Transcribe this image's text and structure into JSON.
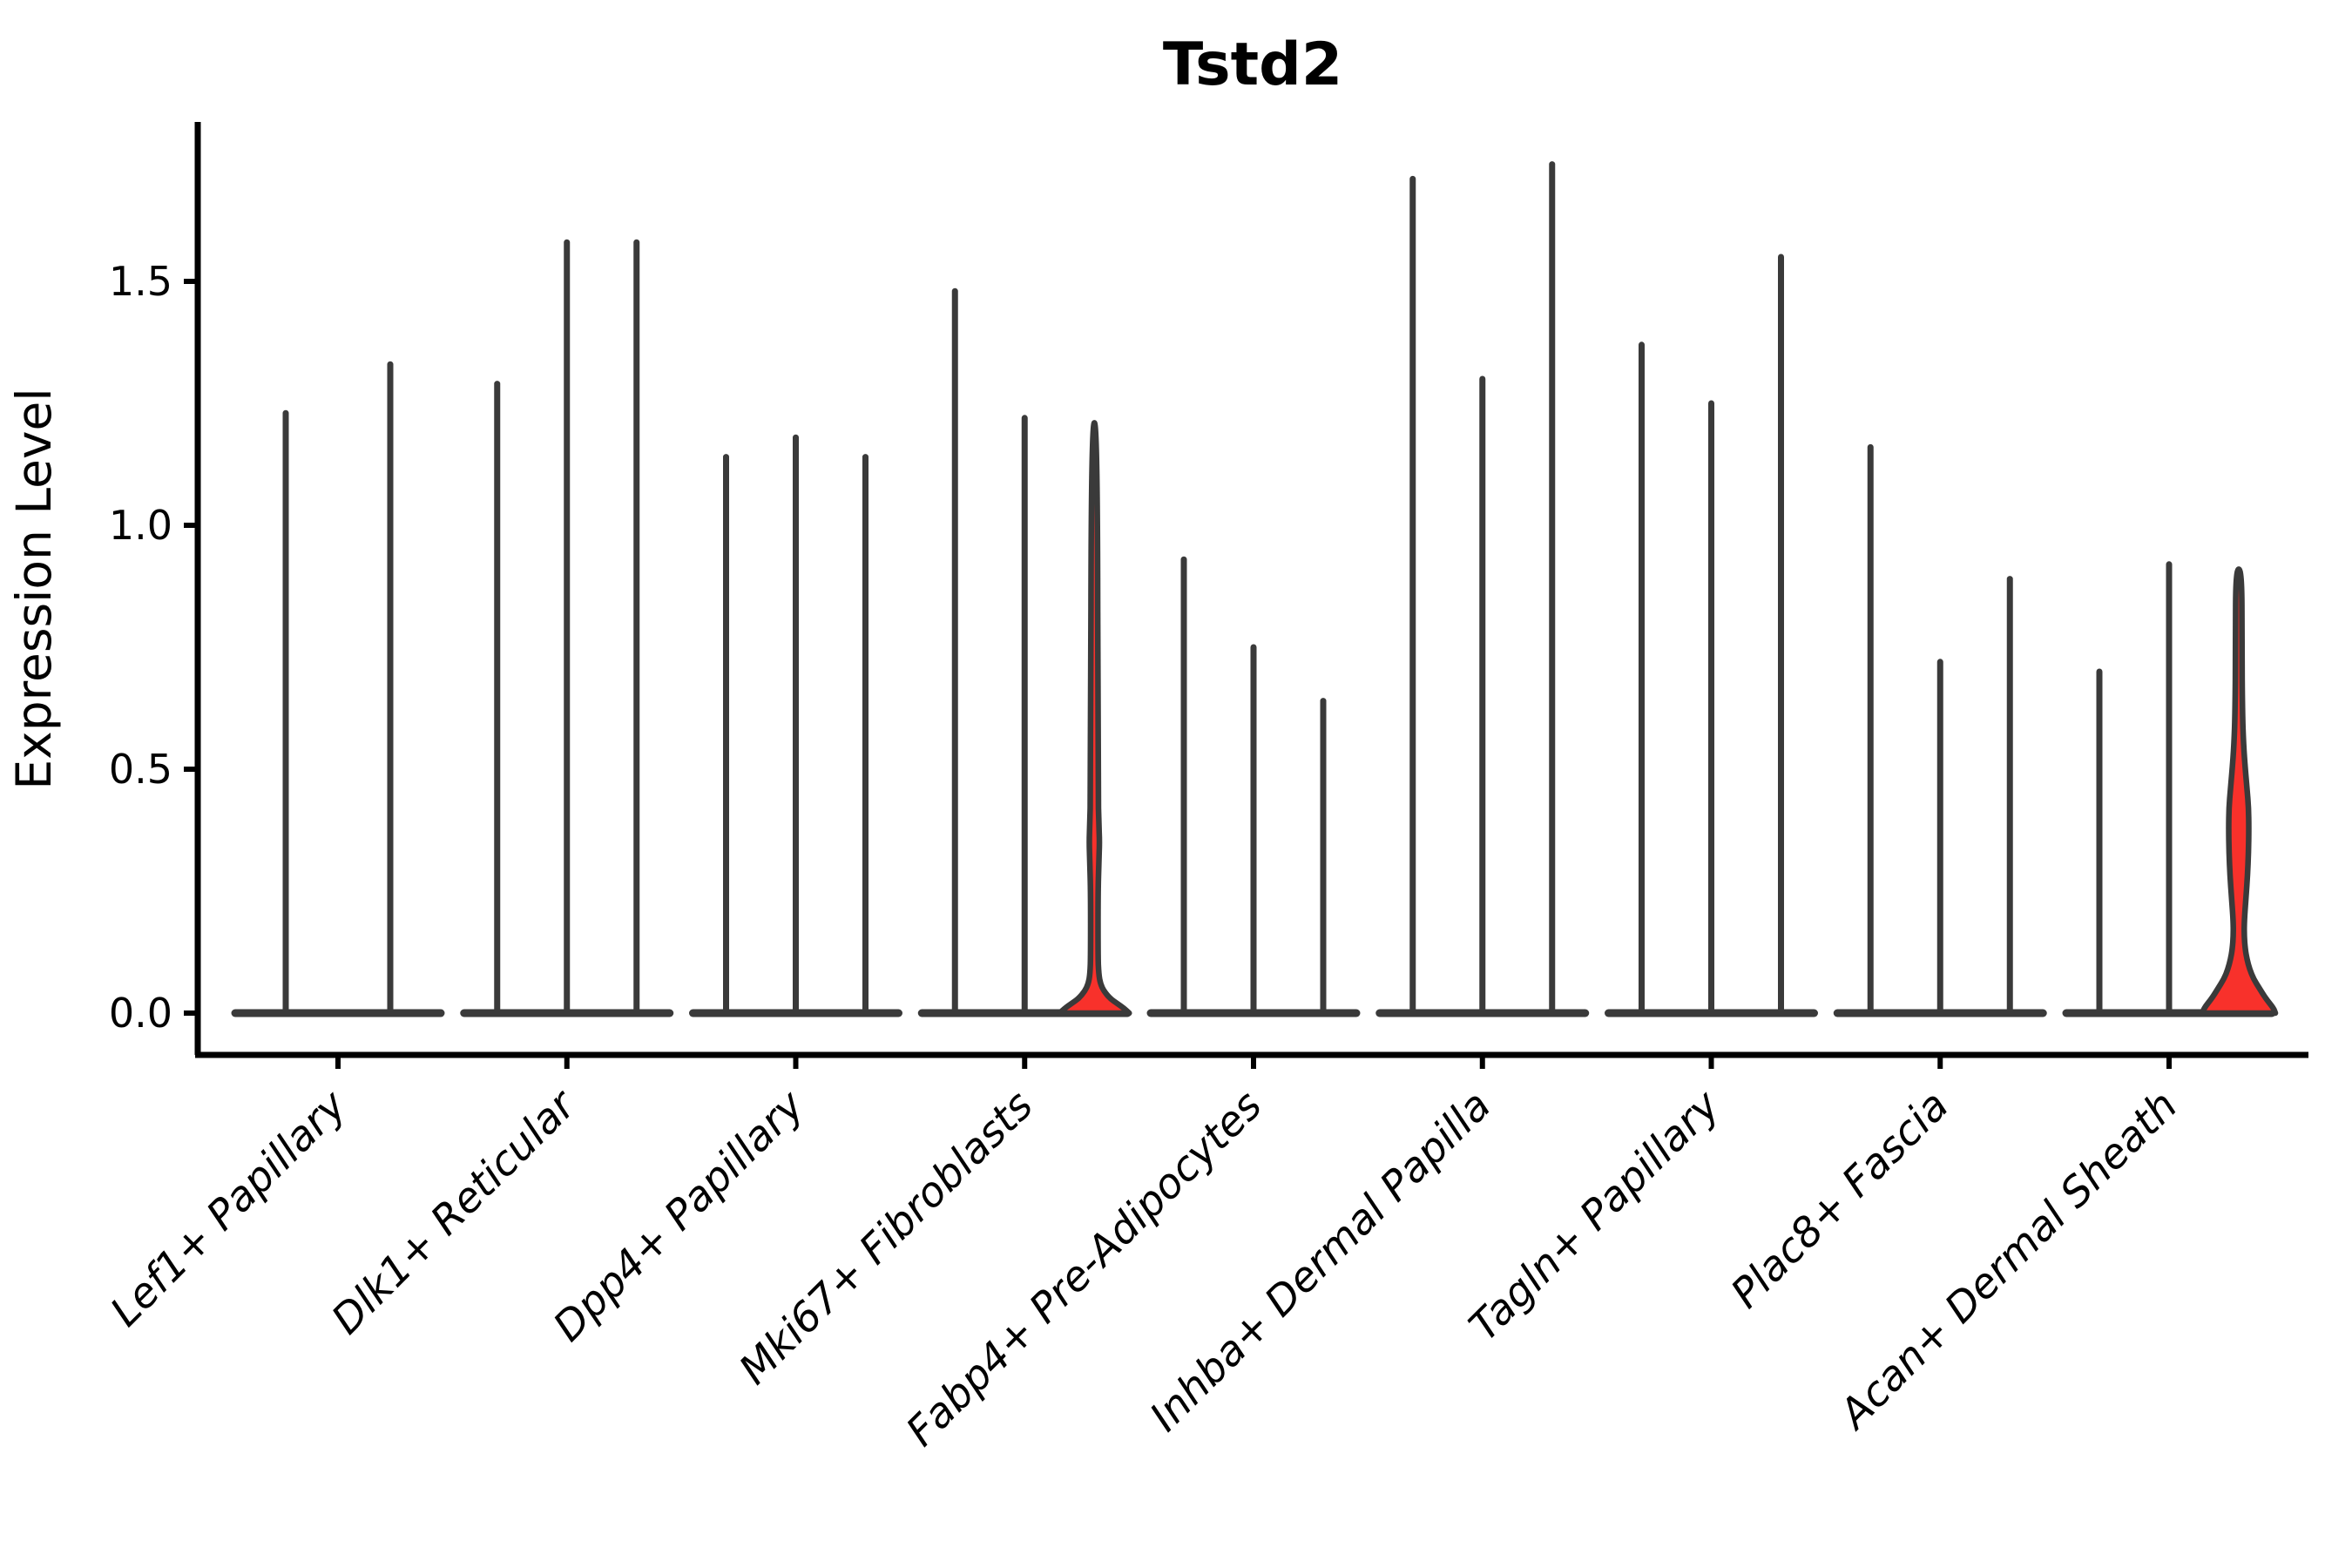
{
  "figure": {
    "title": "Tstd2",
    "ylabel": "Expression Level"
  },
  "chart_data": {
    "type": "violin",
    "title": "Tstd2",
    "xlabel": "",
    "ylabel": "Expression Level",
    "ylim": [
      -0.08,
      1.83
    ],
    "yticks": [
      0.0,
      0.5,
      1.0,
      1.5
    ],
    "ytick_labels": [
      "0.0",
      "0.5",
      "1.0",
      "1.5"
    ],
    "grid": false,
    "legend": "none",
    "x_tick_rotation": 45,
    "categories": [
      "Lef1+ Papillary",
      "Dlk1+ Reticular",
      "Dpp4+ Papillary",
      "Mki67+ Fibroblasts",
      "Fabp4+ Pre-Adipocytes",
      "Inhba+ Dermal Papilla",
      "Tagln+ Papillary",
      "Plac8+ Fascia",
      "Acan+ Dermal Sheath"
    ],
    "series_note": "Each category shows collapsed violins (spikes = max expression of near-zero-density violins). Violins with visible red fill have non-zero expressed fraction.",
    "groups": [
      {
        "category": "Lef1+ Papillary",
        "violins": [
          {
            "max": 1.23
          },
          {
            "max": 1.33
          }
        ]
      },
      {
        "category": "Dlk1+ Reticular",
        "violins": [
          {
            "max": 1.29
          },
          {
            "max": 1.58
          },
          {
            "max": 1.58
          }
        ]
      },
      {
        "category": "Dpp4+ Papillary",
        "violins": [
          {
            "max": 1.14
          },
          {
            "max": 1.18
          },
          {
            "max": 1.14
          }
        ]
      },
      {
        "category": "Mki67+ Fibroblasts",
        "violins": [
          {
            "max": 1.48
          },
          {
            "max": 1.22
          },
          {
            "max": 1.21,
            "fill": "red",
            "profile": [
              [
                0,
                40
              ],
              [
                0.01,
                34
              ],
              [
                0.02,
                26
              ],
              [
                0.03,
                18
              ],
              [
                0.045,
                11
              ],
              [
                0.06,
                7
              ],
              [
                0.08,
                5
              ],
              [
                0.12,
                4.2
              ],
              [
                0.25,
                4.2
              ],
              [
                0.31,
                5.2
              ],
              [
                0.35,
                6
              ],
              [
                0.39,
                5.2
              ],
              [
                0.45,
                4.2
              ],
              [
                1.21,
                3.5
              ]
            ]
          }
        ]
      },
      {
        "category": "Fabp4+ Pre-Adipocytes",
        "violins": [
          {
            "max": 0.93
          },
          {
            "max": 0.75
          },
          {
            "max": 0.64
          }
        ]
      },
      {
        "category": "Inhba+ Dermal Papilla",
        "violins": [
          {
            "max": 1.71
          },
          {
            "max": 1.3
          },
          {
            "max": 1.74
          }
        ]
      },
      {
        "category": "Tagln+ Papillary",
        "violins": [
          {
            "max": 1.37
          },
          {
            "max": 1.25
          },
          {
            "max": 1.55
          }
        ]
      },
      {
        "category": "Plac8+ Fascia",
        "violins": [
          {
            "max": 1.16
          },
          {
            "max": 0.72
          },
          {
            "max": 0.89
          }
        ]
      },
      {
        "category": "Acan+ Dermal Sheath",
        "violins": [
          {
            "max": 0.7
          },
          {
            "max": 0.92
          },
          {
            "max": 0.91,
            "fill": "red",
            "profile": [
              [
                0,
                42
              ],
              [
                0.01,
                40
              ],
              [
                0.03,
                31
              ],
              [
                0.05,
                24
              ],
              [
                0.07,
                17
              ],
              [
                0.09,
                12.5
              ],
              [
                0.11,
                9.5
              ],
              [
                0.13,
                7.5
              ],
              [
                0.16,
                6.2
              ],
              [
                0.19,
                6.4
              ],
              [
                0.23,
                8
              ],
              [
                0.28,
                10
              ],
              [
                0.33,
                11.2
              ],
              [
                0.38,
                11.6
              ],
              [
                0.42,
                11.3
              ],
              [
                0.46,
                9.5
              ],
              [
                0.5,
                7.5
              ],
              [
                0.55,
                5.5
              ],
              [
                0.62,
                4.2
              ],
              [
                0.75,
                3.6
              ],
              [
                0.91,
                3.5
              ]
            ]
          }
        ]
      }
    ],
    "colors": {
      "violin_stroke": "#3a3a3a",
      "red_fill": "#f8312b",
      "axis": "#000000",
      "text": "#000000",
      "background": "#ffffff"
    }
  }
}
